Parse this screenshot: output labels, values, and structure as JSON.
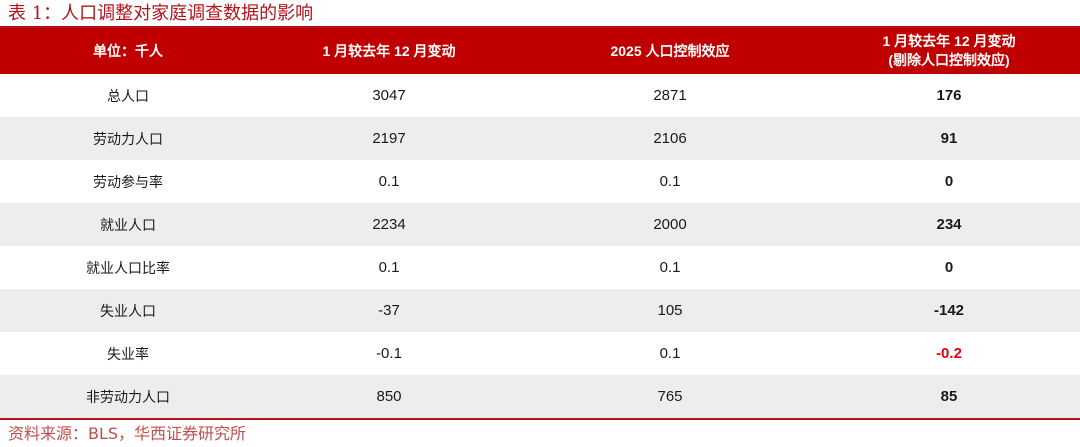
{
  "title": "表 1：人口调整对家庭调查数据的影响",
  "header": {
    "col0": "单位：千人",
    "col1": "1 月较去年 12 月变动",
    "col2": "2025 人口控制效应",
    "col3_line1": "1 月较去年 12 月变动",
    "col3_line2": "(剔除人口控制效应)"
  },
  "rows": [
    {
      "label": "总人口",
      "change": "3047",
      "effect": "2871",
      "adjusted": "176"
    },
    {
      "label": "劳动力人口",
      "change": "2197",
      "effect": "2106",
      "adjusted": "91"
    },
    {
      "label": "劳动参与率",
      "change": "0.1",
      "effect": "0.1",
      "adjusted": "0"
    },
    {
      "label": "就业人口",
      "change": "2234",
      "effect": "2000",
      "adjusted": "234"
    },
    {
      "label": "就业人口比率",
      "change": "0.1",
      "effect": "0.1",
      "adjusted": "0"
    },
    {
      "label": "失业人口",
      "change": "-37",
      "effect": "105",
      "adjusted": "-142"
    },
    {
      "label": "失业率",
      "change": "-0.1",
      "effect": "0.1",
      "adjusted": "-0.2"
    },
    {
      "label": "非劳动力人口",
      "change": "850",
      "effect": "765",
      "adjusted": "85"
    }
  ],
  "highlight_color": "#e0000e",
  "header_color": "#c00000",
  "source": "资料来源：BLS，华西证券研究所"
}
